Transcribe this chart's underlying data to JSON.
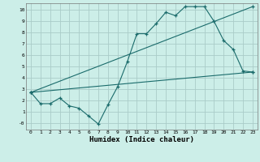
{
  "xlabel": "Humidex (Indice chaleur)",
  "bg_color": "#cceee8",
  "grid_color": "#aaccc8",
  "line_color": "#1a6b6b",
  "xlim": [
    -0.5,
    23.5
  ],
  "ylim": [
    -0.6,
    10.6
  ],
  "xticks": [
    0,
    1,
    2,
    3,
    4,
    5,
    6,
    7,
    8,
    9,
    10,
    11,
    12,
    13,
    14,
    15,
    16,
    17,
    18,
    19,
    20,
    21,
    22,
    23
  ],
  "yticks": [
    0,
    1,
    2,
    3,
    4,
    5,
    6,
    7,
    8,
    9,
    10
  ],
  "ytick_labels": [
    "-0",
    "1",
    "2",
    "3",
    "4",
    "5",
    "6",
    "7",
    "8",
    "9",
    "10"
  ],
  "line1_x": [
    0,
    1,
    2,
    3,
    4,
    5,
    6,
    7,
    8,
    9,
    10,
    11,
    12,
    13,
    14,
    15,
    16,
    17,
    18,
    19,
    20,
    21,
    22,
    23
  ],
  "line1_y": [
    2.7,
    1.7,
    1.7,
    2.2,
    1.5,
    1.3,
    0.6,
    -0.1,
    1.6,
    3.2,
    5.4,
    7.9,
    7.9,
    8.8,
    9.8,
    9.5,
    10.3,
    10.3,
    10.3,
    9.0,
    7.3,
    6.5,
    4.6,
    4.5
  ],
  "line2_x": [
    0,
    23
  ],
  "line2_y": [
    2.7,
    4.5
  ],
  "line3_x": [
    0,
    23
  ],
  "line3_y": [
    2.7,
    10.3
  ]
}
